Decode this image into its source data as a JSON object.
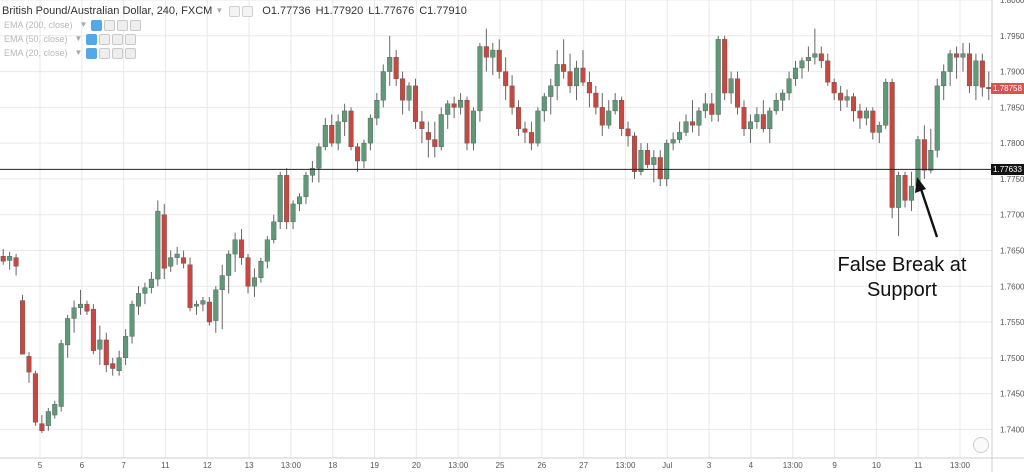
{
  "header": {
    "symbol": "British Pound/Australian Dollar, 240, FXCM",
    "open_label": "O",
    "open": "1.77736",
    "high_label": "H",
    "high": "1.77920",
    "low_label": "L",
    "low": "1.77676",
    "close_label": "C",
    "close": "1.77910"
  },
  "indicators": [
    {
      "label": "EMA (200, close)"
    },
    {
      "label": "EMA (50, close)"
    },
    {
      "label": "EMA (20, close)"
    }
  ],
  "annotation": {
    "line1": "False Break at",
    "line2": "Support"
  },
  "price_tags": {
    "last_price": "1.78758",
    "support_price": "1.77633"
  },
  "colors": {
    "up": "#5e9a78",
    "down": "#c8473f",
    "grid": "#e9e9e9",
    "support_line": "#222222",
    "last_price_tag": "#d9534f",
    "support_tag": "#131313"
  },
  "chart_data": {
    "type": "candlestick",
    "title": "British Pound/Australian Dollar, 240, FXCM",
    "ylim": [
      1.736,
      1.8
    ],
    "y_ticks": [
      "1.80000",
      "1.79500",
      "1.79000",
      "1.78500",
      "1.78000",
      "1.77500",
      "1.77000",
      "1.76500",
      "1.76000",
      "1.75500",
      "1.75000",
      "1.74500",
      "1.74000"
    ],
    "x_ticks": [
      "5",
      "6",
      "7",
      "11",
      "12",
      "13",
      "13:00",
      "18",
      "19",
      "20",
      "13:00",
      "25",
      "26",
      "27",
      "13:00",
      "Jul",
      "3",
      "4",
      "13:00",
      "9",
      "10",
      "11",
      "13:00"
    ],
    "support_level": 1.77633,
    "last_price": 1.78758,
    "candles": [
      [
        1.7642,
        1.7652,
        1.763,
        1.7635
      ],
      [
        1.7636,
        1.7648,
        1.7623,
        1.7642
      ],
      [
        1.764,
        1.7645,
        1.7615,
        1.7628
      ],
      [
        1.758,
        1.7588,
        1.7505,
        1.7505
      ],
      [
        1.7502,
        1.7508,
        1.7465,
        1.748
      ],
      [
        1.7478,
        1.7482,
        1.7405,
        1.741
      ],
      [
        1.7408,
        1.742,
        1.7395,
        1.7398
      ],
      [
        1.7405,
        1.743,
        1.7398,
        1.7425
      ],
      [
        1.742,
        1.744,
        1.7415,
        1.7435
      ],
      [
        1.7432,
        1.7525,
        1.7425,
        1.752
      ],
      [
        1.7518,
        1.756,
        1.75,
        1.7555
      ],
      [
        1.7555,
        1.758,
        1.7535,
        1.757
      ],
      [
        1.757,
        1.7595,
        1.756,
        1.7575
      ],
      [
        1.7575,
        1.758,
        1.756,
        1.7565
      ],
      [
        1.7568,
        1.7575,
        1.7505,
        1.751
      ],
      [
        1.7512,
        1.7545,
        1.749,
        1.7525
      ],
      [
        1.7525,
        1.7535,
        1.748,
        1.749
      ],
      [
        1.7492,
        1.75,
        1.7475,
        1.7485
      ],
      [
        1.7482,
        1.751,
        1.7475,
        1.75
      ],
      [
        1.75,
        1.754,
        1.749,
        1.753
      ],
      [
        1.753,
        1.758,
        1.752,
        1.7575
      ],
      [
        1.7572,
        1.76,
        1.756,
        1.759
      ],
      [
        1.759,
        1.7605,
        1.7575,
        1.7598
      ],
      [
        1.7598,
        1.762,
        1.759,
        1.761
      ],
      [
        1.761,
        1.772,
        1.76,
        1.7705
      ],
      [
        1.77,
        1.7715,
        1.761,
        1.7625
      ],
      [
        1.7628,
        1.765,
        1.762,
        1.764
      ],
      [
        1.764,
        1.7655,
        1.763,
        1.7645
      ],
      [
        1.764,
        1.765,
        1.7625,
        1.7632
      ],
      [
        1.763,
        1.764,
        1.7565,
        1.757
      ],
      [
        1.7572,
        1.758,
        1.756,
        1.7575
      ],
      [
        1.7575,
        1.7585,
        1.7565,
        1.758
      ],
      [
        1.7578,
        1.7585,
        1.7545,
        1.755
      ],
      [
        1.7552,
        1.76,
        1.7535,
        1.7595
      ],
      [
        1.7595,
        1.763,
        1.754,
        1.7615
      ],
      [
        1.7615,
        1.765,
        1.759,
        1.7645
      ],
      [
        1.7645,
        1.7675,
        1.762,
        1.7665
      ],
      [
        1.7665,
        1.768,
        1.763,
        1.764
      ],
      [
        1.764,
        1.7645,
        1.759,
        1.76
      ],
      [
        1.76,
        1.7625,
        1.7585,
        1.7612
      ],
      [
        1.7612,
        1.764,
        1.7605,
        1.7635
      ],
      [
        1.7635,
        1.767,
        1.7625,
        1.7665
      ],
      [
        1.7665,
        1.77,
        1.766,
        1.769
      ],
      [
        1.769,
        1.776,
        1.768,
        1.7755
      ],
      [
        1.7755,
        1.7765,
        1.768,
        1.769
      ],
      [
        1.769,
        1.772,
        1.768,
        1.7715
      ],
      [
        1.7715,
        1.773,
        1.7705,
        1.7725
      ],
      [
        1.7725,
        1.776,
        1.7715,
        1.7755
      ],
      [
        1.7755,
        1.7775,
        1.7745,
        1.7765
      ],
      [
        1.7765,
        1.78,
        1.7745,
        1.7795
      ],
      [
        1.7795,
        1.7835,
        1.779,
        1.7825
      ],
      [
        1.7825,
        1.784,
        1.7795,
        1.78
      ],
      [
        1.78,
        1.784,
        1.779,
        1.783
      ],
      [
        1.783,
        1.7855,
        1.781,
        1.7845
      ],
      [
        1.7845,
        1.785,
        1.779,
        1.7795
      ],
      [
        1.7795,
        1.78,
        1.776,
        1.7775
      ],
      [
        1.7775,
        1.7805,
        1.7765,
        1.78
      ],
      [
        1.78,
        1.784,
        1.779,
        1.7835
      ],
      [
        1.7835,
        1.787,
        1.7825,
        1.786
      ],
      [
        1.786,
        1.791,
        1.785,
        1.79
      ],
      [
        1.79,
        1.795,
        1.788,
        1.792
      ],
      [
        1.792,
        1.793,
        1.788,
        1.789
      ],
      [
        1.789,
        1.79,
        1.784,
        1.786
      ],
      [
        1.786,
        1.7885,
        1.7845,
        1.788
      ],
      [
        1.788,
        1.789,
        1.782,
        1.783
      ],
      [
        1.783,
        1.7845,
        1.78,
        1.782
      ],
      [
        1.7815,
        1.783,
        1.778,
        1.7805
      ],
      [
        1.7805,
        1.783,
        1.778,
        1.7795
      ],
      [
        1.7795,
        1.785,
        1.779,
        1.784
      ],
      [
        1.784,
        1.786,
        1.782,
        1.7855
      ],
      [
        1.7855,
        1.7865,
        1.7835,
        1.785
      ],
      [
        1.785,
        1.787,
        1.784,
        1.786
      ],
      [
        1.786,
        1.7865,
        1.779,
        1.78
      ],
      [
        1.78,
        1.785,
        1.779,
        1.7845
      ],
      [
        1.7845,
        1.794,
        1.783,
        1.7935
      ],
      [
        1.7935,
        1.796,
        1.79,
        1.792
      ],
      [
        1.792,
        1.794,
        1.7895,
        1.793
      ],
      [
        1.793,
        1.7945,
        1.789,
        1.79
      ],
      [
        1.79,
        1.792,
        1.786,
        1.788
      ],
      [
        1.788,
        1.7895,
        1.784,
        1.785
      ],
      [
        1.785,
        1.786,
        1.781,
        1.782
      ],
      [
        1.782,
        1.783,
        1.78,
        1.7815
      ],
      [
        1.7815,
        1.783,
        1.779,
        1.78
      ],
      [
        1.78,
        1.785,
        1.7795,
        1.7845
      ],
      [
        1.7845,
        1.787,
        1.783,
        1.7865
      ],
      [
        1.7865,
        1.789,
        1.784,
        1.788
      ],
      [
        1.788,
        1.793,
        1.786,
        1.791
      ],
      [
        1.791,
        1.7945,
        1.789,
        1.79
      ],
      [
        1.79,
        1.7925,
        1.787,
        1.788
      ],
      [
        1.788,
        1.7915,
        1.786,
        1.7905
      ],
      [
        1.7905,
        1.793,
        1.788,
        1.7885
      ],
      [
        1.7885,
        1.79,
        1.785,
        1.787
      ],
      [
        1.787,
        1.788,
        1.784,
        1.785
      ],
      [
        1.785,
        1.787,
        1.781,
        1.7825
      ],
      [
        1.7825,
        1.786,
        1.782,
        1.7845
      ],
      [
        1.7845,
        1.787,
        1.784,
        1.786
      ],
      [
        1.786,
        1.7865,
        1.781,
        1.782
      ],
      [
        1.782,
        1.783,
        1.7795,
        1.781
      ],
      [
        1.781,
        1.7815,
        1.775,
        1.776
      ],
      [
        1.776,
        1.78,
        1.7755,
        1.779
      ],
      [
        1.779,
        1.78,
        1.7765,
        1.777
      ],
      [
        1.777,
        1.779,
        1.7745,
        1.778
      ],
      [
        1.778,
        1.779,
        1.774,
        1.775
      ],
      [
        1.775,
        1.7805,
        1.774,
        1.78
      ],
      [
        1.78,
        1.7815,
        1.779,
        1.7805
      ],
      [
        1.7805,
        1.783,
        1.78,
        1.7815
      ],
      [
        1.7815,
        1.784,
        1.781,
        1.783
      ],
      [
        1.783,
        1.786,
        1.7815,
        1.7825
      ],
      [
        1.7825,
        1.785,
        1.781,
        1.7845
      ],
      [
        1.7845,
        1.787,
        1.7835,
        1.7855
      ],
      [
        1.7855,
        1.787,
        1.783,
        1.784
      ],
      [
        1.784,
        1.795,
        1.783,
        1.7945
      ],
      [
        1.7945,
        1.795,
        1.786,
        1.787
      ],
      [
        1.787,
        1.79,
        1.7855,
        1.789
      ],
      [
        1.789,
        1.79,
        1.784,
        1.785
      ],
      [
        1.785,
        1.786,
        1.781,
        1.782
      ],
      [
        1.782,
        1.784,
        1.78,
        1.783
      ],
      [
        1.783,
        1.785,
        1.782,
        1.784
      ],
      [
        1.784,
        1.786,
        1.7815,
        1.782
      ],
      [
        1.782,
        1.785,
        1.78,
        1.7845
      ],
      [
        1.7845,
        1.787,
        1.784,
        1.786
      ],
      [
        1.786,
        1.7875,
        1.7845,
        1.787
      ],
      [
        1.787,
        1.79,
        1.786,
        1.789
      ],
      [
        1.789,
        1.7915,
        1.788,
        1.7905
      ],
      [
        1.7905,
        1.792,
        1.789,
        1.7915
      ],
      [
        1.7915,
        1.7935,
        1.79,
        1.792
      ],
      [
        1.792,
        1.796,
        1.791,
        1.7925
      ],
      [
        1.7925,
        1.7935,
        1.7905,
        1.7915
      ],
      [
        1.7915,
        1.7925,
        1.788,
        1.7885
      ],
      [
        1.7885,
        1.789,
        1.786,
        1.787
      ],
      [
        1.787,
        1.788,
        1.7845,
        1.786
      ],
      [
        1.786,
        1.7875,
        1.785,
        1.7865
      ],
      [
        1.7865,
        1.787,
        1.783,
        1.7845
      ],
      [
        1.7845,
        1.7855,
        1.782,
        1.7835
      ],
      [
        1.7835,
        1.785,
        1.7825,
        1.7845
      ],
      [
        1.7845,
        1.785,
        1.7805,
        1.7815
      ],
      [
        1.7815,
        1.783,
        1.78,
        1.7825
      ],
      [
        1.7825,
        1.789,
        1.782,
        1.7885
      ],
      [
        1.7885,
        1.789,
        1.7695,
        1.771
      ],
      [
        1.771,
        1.776,
        1.767,
        1.7755
      ],
      [
        1.7755,
        1.776,
        1.771,
        1.772
      ],
      [
        1.772,
        1.776,
        1.7705,
        1.774
      ],
      [
        1.774,
        1.781,
        1.7735,
        1.7805
      ],
      [
        1.7805,
        1.7825,
        1.775,
        1.7762
      ],
      [
        1.7762,
        1.782,
        1.7758,
        1.779
      ],
      [
        1.779,
        1.789,
        1.778,
        1.788
      ],
      [
        1.788,
        1.791,
        1.786,
        1.79
      ],
      [
        1.79,
        1.793,
        1.788,
        1.7925
      ],
      [
        1.7925,
        1.7935,
        1.789,
        1.792
      ],
      [
        1.792,
        1.794,
        1.79,
        1.7925
      ],
      [
        1.7925,
        1.794,
        1.787,
        1.788
      ],
      [
        1.788,
        1.7925,
        1.786,
        1.7915
      ],
      [
        1.7915,
        1.7925,
        1.7865,
        1.7878
      ],
      [
        1.7878,
        1.79,
        1.786,
        1.7876
      ]
    ]
  }
}
